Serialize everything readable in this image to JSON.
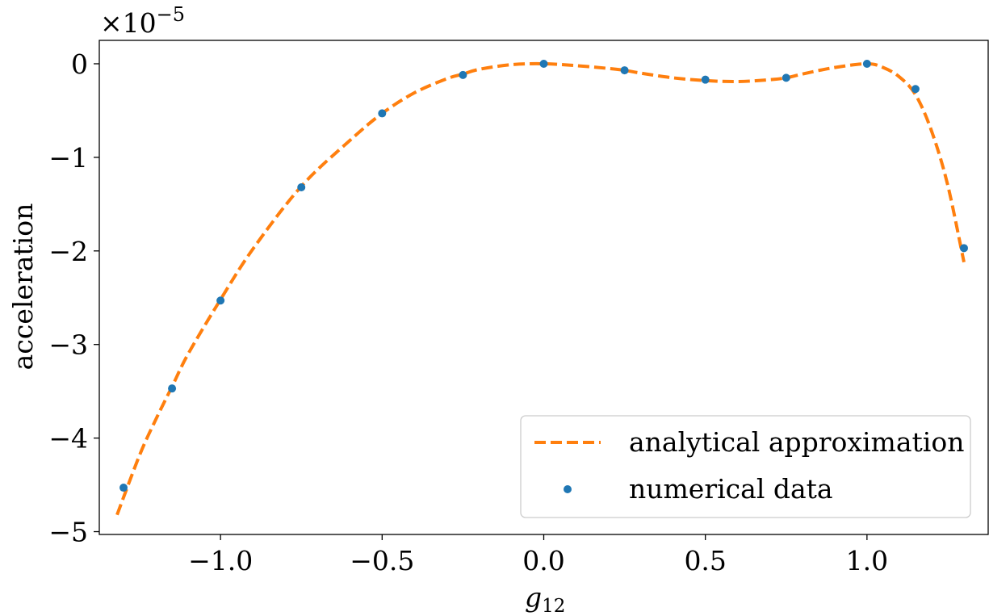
{
  "chart_data": {
    "type": "line",
    "title": "",
    "xlabel": "g",
    "xlabel_sub": "12",
    "ylabel": "acceleration",
    "y_offset_text": {
      "base": "×10",
      "exponent": "−5"
    },
    "xlim": [
      -1.375,
      1.375
    ],
    "ylim": [
      -5.03,
      0.25
    ],
    "x_ticks": [
      {
        "value": -1.0,
        "label": "−1.0"
      },
      {
        "value": -0.5,
        "label": "−0.5"
      },
      {
        "value": 0.0,
        "label": "0.0"
      },
      {
        "value": 0.5,
        "label": "0.5"
      },
      {
        "value": 1.0,
        "label": "1.0"
      }
    ],
    "y_ticks": [
      {
        "value": 0,
        "label": "0"
      },
      {
        "value": -1,
        "label": "−1"
      },
      {
        "value": -2,
        "label": "−2"
      },
      {
        "value": -3,
        "label": "−3"
      },
      {
        "value": -4,
        "label": "−4"
      },
      {
        "value": -5,
        "label": "−5"
      }
    ],
    "grid": false,
    "legend_position": "bottom-right",
    "series": [
      {
        "name": "analytical approximation",
        "style": "dashed-line",
        "color": "#ff7f0e",
        "x": [
          -1.32,
          -1.25,
          -1.2,
          -1.15,
          -1.1,
          -1.0,
          -0.9,
          -0.75,
          -0.6,
          -0.5,
          -0.4,
          -0.3,
          -0.25,
          -0.2,
          -0.1,
          0.0,
          0.1,
          0.2,
          0.25,
          0.3,
          0.4,
          0.5,
          0.6,
          0.7,
          0.75,
          0.8,
          0.9,
          1.0,
          1.05,
          1.1,
          1.15,
          1.2,
          1.25,
          1.3
        ],
        "y": [
          -4.82,
          -4.18,
          -3.8,
          -3.45,
          -3.1,
          -2.52,
          -1.98,
          -1.31,
          -0.82,
          -0.53,
          -0.31,
          -0.16,
          -0.11,
          -0.06,
          -0.01,
          0.0,
          -0.02,
          -0.05,
          -0.07,
          -0.1,
          -0.15,
          -0.18,
          -0.19,
          -0.17,
          -0.15,
          -0.11,
          -0.04,
          0.0,
          -0.04,
          -0.14,
          -0.33,
          -0.72,
          -1.3,
          -2.12
        ]
      },
      {
        "name": "numerical data",
        "style": "points",
        "color": "#1f77b4",
        "x": [
          -1.3,
          -1.15,
          -1.0,
          -0.75,
          -0.5,
          -0.25,
          0.0,
          0.25,
          0.5,
          0.75,
          1.0,
          1.15,
          1.3
        ],
        "y": [
          -4.53,
          -3.47,
          -2.53,
          -1.32,
          -0.53,
          -0.12,
          0.0,
          -0.07,
          -0.17,
          -0.15,
          0.0,
          -0.27,
          -1.97
        ]
      }
    ]
  }
}
